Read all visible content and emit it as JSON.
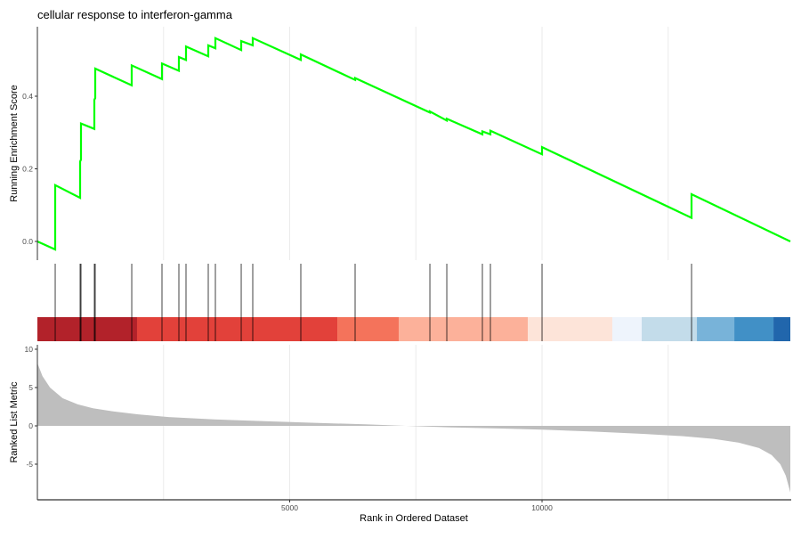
{
  "chart_data": [
    {
      "type": "line",
      "title": "cellular response to interferon-gamma",
      "ylabel": "Running Enrichment Score",
      "xlim": [
        0,
        14920
      ],
      "ylim": [
        -0.04,
        0.62
      ],
      "yticks": [
        0.0,
        0.2,
        0.4
      ],
      "ytick_labels": [
        "0.0",
        "0.2",
        "0.4"
      ],
      "xgrid": [
        2500,
        5000,
        7500,
        10000,
        12500
      ],
      "color": "#00ff00",
      "points": [
        [
          0,
          0.0
        ],
        [
          353,
          -0.022
        ],
        [
          353,
          0.155
        ],
        [
          847,
          0.12
        ],
        [
          847,
          0.22
        ],
        [
          864,
          0.225
        ],
        [
          864,
          0.325
        ],
        [
          1129,
          0.31
        ],
        [
          1129,
          0.39
        ],
        [
          1146,
          0.395
        ],
        [
          1146,
          0.476
        ],
        [
          1870,
          0.43
        ],
        [
          1870,
          0.485
        ],
        [
          2469,
          0.447
        ],
        [
          2469,
          0.49
        ],
        [
          2804,
          0.47
        ],
        [
          2804,
          0.508
        ],
        [
          2945,
          0.5
        ],
        [
          2945,
          0.537
        ],
        [
          3386,
          0.51
        ],
        [
          3386,
          0.54
        ],
        [
          3527,
          0.532
        ],
        [
          3527,
          0.56
        ],
        [
          4039,
          0.527
        ],
        [
          4039,
          0.552
        ],
        [
          4268,
          0.54
        ],
        [
          4268,
          0.56
        ],
        [
          5220,
          0.5
        ],
        [
          5220,
          0.515
        ],
        [
          6296,
          0.445
        ],
        [
          6296,
          0.45
        ],
        [
          7778,
          0.355
        ],
        [
          7778,
          0.358
        ],
        [
          8113,
          0.333
        ],
        [
          8113,
          0.338
        ],
        [
          8818,
          0.295
        ],
        [
          8818,
          0.303
        ],
        [
          8977,
          0.295
        ],
        [
          8977,
          0.305
        ],
        [
          10000,
          0.24
        ],
        [
          10000,
          0.26
        ],
        [
          12963,
          0.065
        ],
        [
          12963,
          0.13
        ],
        [
          14920,
          0.0
        ]
      ]
    },
    {
      "type": "rug",
      "hits": [
        353,
        847,
        864,
        1129,
        1146,
        1870,
        2469,
        2804,
        2945,
        3386,
        3527,
        4039,
        4268,
        5220,
        6296,
        7778,
        8113,
        8818,
        8977,
        10000,
        12963
      ],
      "bands": [
        {
          "from": 0,
          "to": 1975,
          "color": "#b2222a"
        },
        {
          "from": 1975,
          "to": 5944,
          "color": "#e2413a"
        },
        {
          "from": 5944,
          "to": 7160,
          "color": "#f4735b"
        },
        {
          "from": 7160,
          "to": 9718,
          "color": "#fcb19a"
        },
        {
          "from": 9718,
          "to": 11393,
          "color": "#fde4d9"
        },
        {
          "from": 11393,
          "to": 11975,
          "color": "#eef4fc"
        },
        {
          "from": 11975,
          "to": 13069,
          "color": "#c3dcea"
        },
        {
          "from": 13069,
          "to": 13810,
          "color": "#78b3d9"
        },
        {
          "from": 13810,
          "to": 14586,
          "color": "#4190c6"
        },
        {
          "from": 14586,
          "to": 14920,
          "color": "#2166ac"
        }
      ]
    },
    {
      "type": "area",
      "xlabel": "Rank in Ordered Dataset",
      "ylabel": "Ranked List Metric",
      "xlim": [
        0,
        14920
      ],
      "ylim": [
        -9.5,
        10.7
      ],
      "yticks": [
        10,
        5,
        0,
        -5
      ],
      "ytick_labels": [
        "10",
        "5",
        "0",
        "-5"
      ],
      "xticks": [
        5000,
        10000
      ],
      "xtick_labels": [
        "5000",
        "10000"
      ],
      "color": "#bebebe",
      "points": [
        [
          0,
          8.2
        ],
        [
          100,
          6.5
        ],
        [
          250,
          5.0
        ],
        [
          500,
          3.6
        ],
        [
          800,
          2.8
        ],
        [
          1100,
          2.3
        ],
        [
          1500,
          1.9
        ],
        [
          2000,
          1.5
        ],
        [
          2600,
          1.15
        ],
        [
          3500,
          0.85
        ],
        [
          4500,
          0.6
        ],
        [
          5500,
          0.4
        ],
        [
          6500,
          0.2
        ],
        [
          7300,
          0.0
        ],
        [
          8200,
          -0.2
        ],
        [
          9200,
          -0.35
        ],
        [
          10000,
          -0.5
        ],
        [
          11000,
          -0.75
        ],
        [
          12000,
          -1.05
        ],
        [
          12800,
          -1.35
        ],
        [
          13400,
          -1.7
        ],
        [
          13900,
          -2.2
        ],
        [
          14300,
          -2.9
        ],
        [
          14550,
          -3.8
        ],
        [
          14720,
          -5.0
        ],
        [
          14830,
          -6.5
        ],
        [
          14920,
          -8.7
        ]
      ]
    }
  ]
}
